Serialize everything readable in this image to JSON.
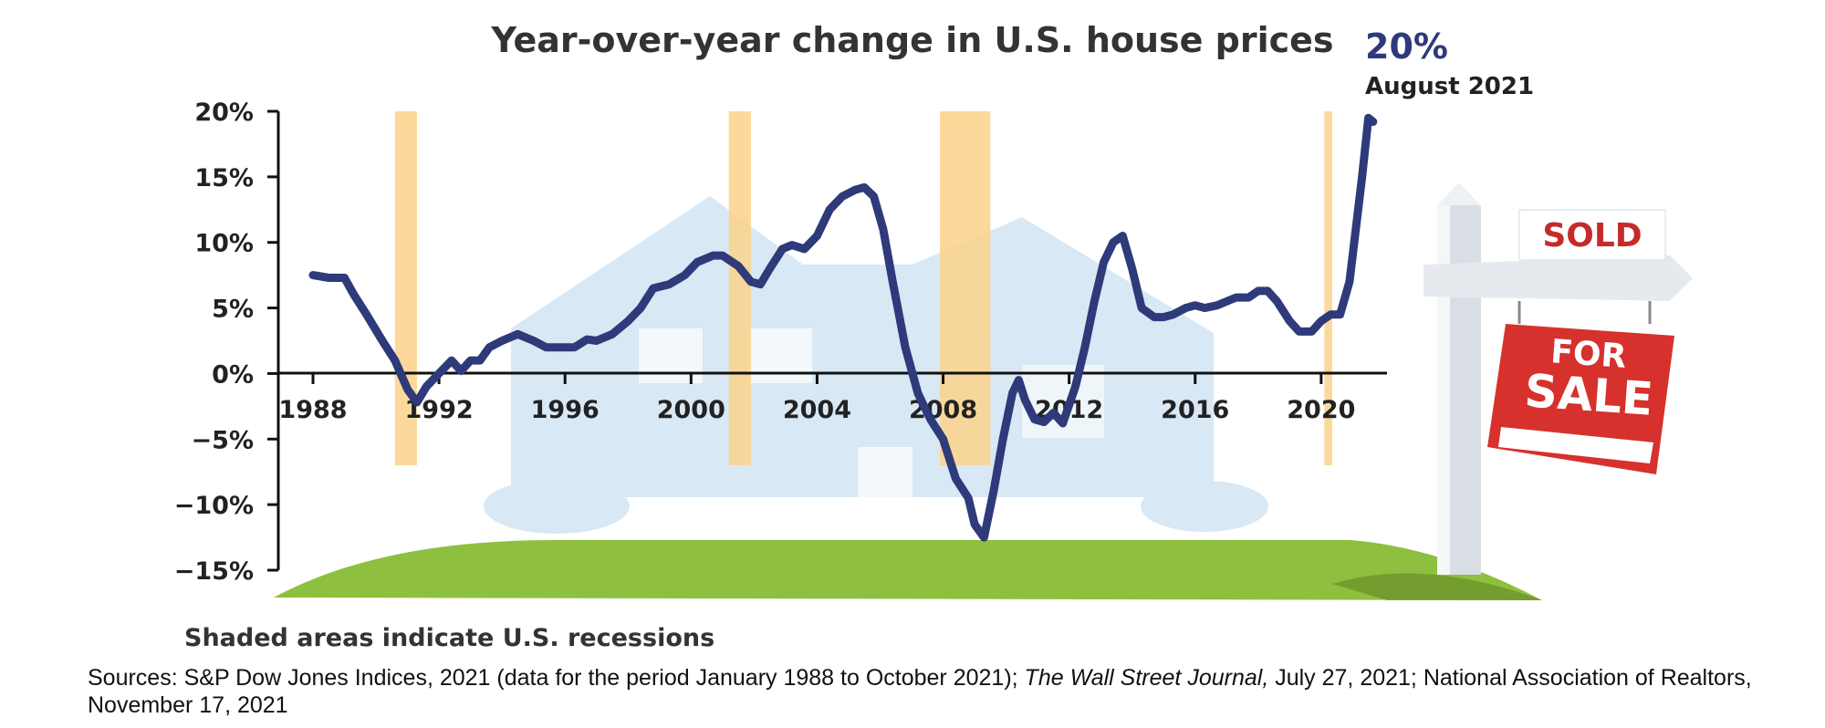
{
  "chart_data": {
    "type": "line",
    "title": "Year-over-year change in U.S. house prices",
    "xlabel": "",
    "ylabel": "",
    "xlim": [
      1988,
      2021.8
    ],
    "ylim": [
      -15,
      20
    ],
    "x_ticks": [
      1988,
      1992,
      1996,
      2000,
      2004,
      2008,
      2012,
      2016,
      2020
    ],
    "x_tick_labels": [
      "1988",
      "1992",
      "1996",
      "2000",
      "2004",
      "2008",
      "2012",
      "2016",
      "2020"
    ],
    "y_ticks": [
      20,
      15,
      10,
      5,
      0,
      -5,
      -10,
      -15
    ],
    "y_tick_labels": [
      "20%",
      "15%",
      "10%",
      "5%",
      "0%",
      "−5%",
      "−10%",
      "−15%"
    ],
    "line_color": "#2e3a7a",
    "recession_color": "#fcd28a",
    "recessions": [
      [
        1990.6,
        1991.3
      ],
      [
        2001.2,
        2001.9
      ],
      [
        2007.9,
        2009.5
      ],
      [
        2020.1,
        2020.35
      ]
    ],
    "series": [
      {
        "x": [
          1988.0,
          1988.5,
          1989.0,
          1989.3,
          1989.7,
          1990.2,
          1990.6,
          1991.0,
          1991.3,
          1991.6,
          1992.0,
          1992.4,
          1992.7,
          1993.0,
          1993.3,
          1993.6,
          1994.0,
          1994.5,
          1995.0,
          1995.4,
          1995.8,
          1996.3,
          1996.7,
          1997.0,
          1997.5,
          1998.0,
          1998.4,
          1998.8,
          1999.3,
          1999.8,
          2000.2,
          2000.7,
          2001.0,
          2001.5,
          2001.9,
          2002.2,
          2002.5,
          2002.9,
          2003.2,
          2003.6,
          2004.0,
          2004.4,
          2004.8,
          2005.2,
          2005.5,
          2005.8,
          2006.1,
          2006.4,
          2006.8,
          2007.2,
          2007.6,
          2008.0,
          2008.4,
          2008.8,
          2009.0,
          2009.3,
          2009.6,
          2009.9,
          2010.2,
          2010.4,
          2010.6,
          2010.9,
          2011.2,
          2011.5,
          2011.8,
          2012.2,
          2012.5,
          2012.8,
          2013.1,
          2013.4,
          2013.7,
          2014.0,
          2014.3,
          2014.7,
          2015.0,
          2015.3,
          2015.7,
          2016.0,
          2016.3,
          2016.7,
          2017.0,
          2017.3,
          2017.7,
          2018.0,
          2018.3,
          2018.6,
          2019.0,
          2019.3,
          2019.7,
          2020.0,
          2020.3,
          2020.6,
          2020.9,
          2021.1,
          2021.3,
          2021.5,
          2021.65
        ],
        "y": [
          7.5,
          7.3,
          7.3,
          6.0,
          4.5,
          2.5,
          1.0,
          -1.2,
          -2.2,
          -1.0,
          0.0,
          1.0,
          0.2,
          1.0,
          1.0,
          2.0,
          2.5,
          3.0,
          2.5,
          2.0,
          2.0,
          2.0,
          2.6,
          2.5,
          3.0,
          4.0,
          5.0,
          6.5,
          6.8,
          7.5,
          8.5,
          9.0,
          9.0,
          8.2,
          7.0,
          6.8,
          8.0,
          9.5,
          9.8,
          9.5,
          10.5,
          12.5,
          13.5,
          14.0,
          14.2,
          13.5,
          11.0,
          7.0,
          2.0,
          -1.5,
          -3.5,
          -5.0,
          -8.0,
          -9.5,
          -11.5,
          -12.5,
          -9.0,
          -5.0,
          -1.5,
          -0.5,
          -2.0,
          -3.5,
          -3.7,
          -3.0,
          -3.8,
          -1.0,
          2.0,
          5.5,
          8.5,
          10.0,
          10.5,
          8.0,
          5.0,
          4.3,
          4.3,
          4.5,
          5.0,
          5.2,
          5.0,
          5.2,
          5.5,
          5.8,
          5.8,
          6.3,
          6.3,
          5.5,
          4.0,
          3.2,
          3.2,
          4.0,
          4.5,
          4.5,
          7.0,
          11.0,
          15.0,
          19.5,
          19.2
        ]
      }
    ],
    "annotations": [
      {
        "value": "20%",
        "label": "August 2021"
      }
    ],
    "note": "Shaded areas indicate U.S. recessions"
  },
  "illustration": {
    "sign_top": "SOLD",
    "sign_line1": "FOR",
    "sign_line2": "SALE"
  },
  "source": {
    "prefix": "Sources: S&P Dow Jones Indices, 2021 (data for the period January 1988 to October 2021); ",
    "italic": "The Wall Street Journal,",
    "suffix": " July 27, 2021; National Association of Realtors, November 17, 2021"
  }
}
